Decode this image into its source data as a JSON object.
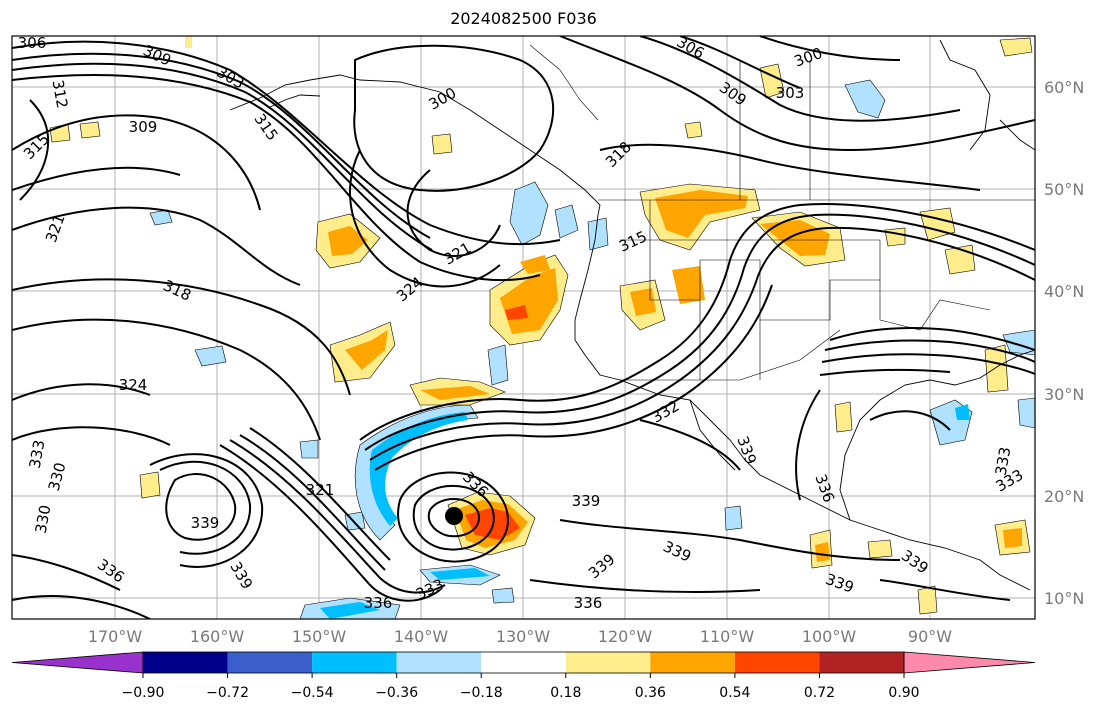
{
  "title": "2024082500 F036",
  "map": {
    "lat_labels": [
      "60°N",
      "50°N",
      "40°N",
      "30°N",
      "20°N",
      "10°N"
    ],
    "lon_labels": [
      "170°W",
      "160°W",
      "150°W",
      "140°W",
      "130°W",
      "120°W",
      "110°W",
      "100°W",
      "90°W"
    ],
    "contour_labels": [
      {
        "text": "306"
      },
      {
        "text": "309"
      },
      {
        "text": "303"
      },
      {
        "text": "312"
      },
      {
        "text": "309"
      },
      {
        "text": "315"
      },
      {
        "text": "315"
      },
      {
        "text": "300"
      },
      {
        "text": "306"
      },
      {
        "text": "300"
      },
      {
        "text": "309"
      },
      {
        "text": "303"
      },
      {
        "text": "318"
      },
      {
        "text": "315"
      },
      {
        "text": "321"
      },
      {
        "text": "321"
      },
      {
        "text": "324"
      },
      {
        "text": "318"
      },
      {
        "text": "324"
      },
      {
        "text": "321"
      },
      {
        "text": "330"
      },
      {
        "text": "333"
      },
      {
        "text": "336"
      },
      {
        "text": "339"
      },
      {
        "text": "339"
      },
      {
        "text": "336"
      },
      {
        "text": "339"
      },
      {
        "text": "336"
      },
      {
        "text": "339"
      },
      {
        "text": "333"
      },
      {
        "text": "333"
      },
      {
        "text": "332"
      },
      {
        "text": "339"
      },
      {
        "text": "336"
      },
      {
        "text": "339"
      },
      {
        "text": "339"
      },
      {
        "text": "339"
      },
      {
        "text": "336"
      },
      {
        "text": "330"
      },
      {
        "text": "333"
      }
    ]
  },
  "colorbar": {
    "ticks": [
      "−0.90",
      "−0.72",
      "−0.54",
      "−0.36",
      "−0.18",
      "0.18",
      "0.36",
      "0.54",
      "0.72",
      "0.90"
    ],
    "colors": [
      "#9932cc",
      "#00008b",
      "#3a5fcd",
      "#00bfff",
      "#b0e2ff",
      "#ffffff",
      "#ffec8b",
      "#ffa500",
      "#ff4500",
      "#b22222",
      "#ff89ac"
    ]
  }
}
